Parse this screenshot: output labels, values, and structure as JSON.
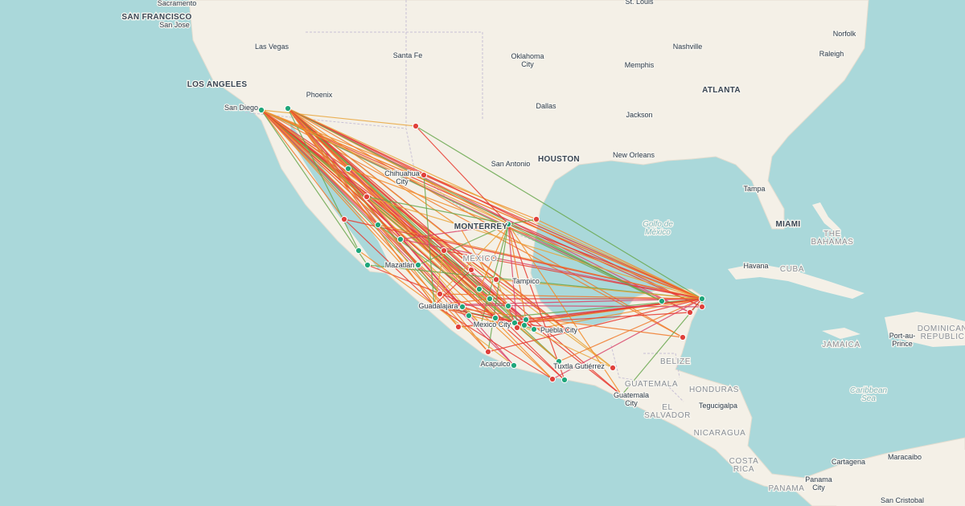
{
  "places": [
    [
      "Sacramento"
    ],
    [
      "SAN FRANCISCO"
    ],
    [
      "San Jose"
    ],
    [
      "Las Vegas"
    ],
    [
      "Santa Fe"
    ],
    [
      "Oklahoma",
      "City"
    ],
    [
      "St. Louis"
    ],
    [
      "Nashville"
    ],
    [
      "Norfolk"
    ],
    [
      "Memphis"
    ],
    [
      "Raleigh"
    ],
    [
      "LOS ANGELES"
    ],
    [
      "Phoenix"
    ],
    [
      "ATLANTA"
    ],
    [
      "Dallas"
    ],
    [
      "San Diego"
    ],
    [
      "Jackson"
    ],
    [
      "HOUSTON"
    ],
    [
      "New Orleans"
    ],
    [
      "San Antonio"
    ],
    [
      "Chihuahua",
      "City"
    ],
    [
      "Tampa"
    ],
    [
      "Golfo de",
      "México"
    ],
    [
      "MIAMI"
    ],
    [
      "THE",
      "BAHAMAS"
    ],
    [
      "MONTERREY"
    ],
    [
      "MÉXICO"
    ],
    [
      "Havana"
    ],
    [
      "CUBA"
    ],
    [
      "Mazatlán"
    ],
    [
      "Tampico"
    ],
    [
      "Guadalajara"
    ],
    [
      "Mexico City"
    ],
    [
      "Puebla City"
    ],
    [
      "Port-au-",
      "Prince"
    ],
    [
      "DOMINICAN",
      "REPUBLIC"
    ],
    [
      "JAMAICA"
    ],
    [
      "BELIZE"
    ],
    [
      "Acapulco"
    ],
    [
      "Tuxtla Gutiérrez"
    ],
    [
      "GUATEMALA"
    ],
    [
      "HONDURAS"
    ],
    [
      "Caribbean",
      "Sea"
    ],
    [
      "Guatemala",
      "City"
    ],
    [
      "EL",
      "SALVADOR"
    ],
    [
      "Tegucigalpa"
    ],
    [
      "NICARAGUA"
    ],
    [
      "COSTA",
      "RICA"
    ],
    [
      "Cartagena"
    ],
    [
      "Maracaibo"
    ],
    [
      "PANAMA"
    ],
    [
      "Panama",
      "City"
    ],
    [
      "San Cristobal"
    ]
  ]
}
